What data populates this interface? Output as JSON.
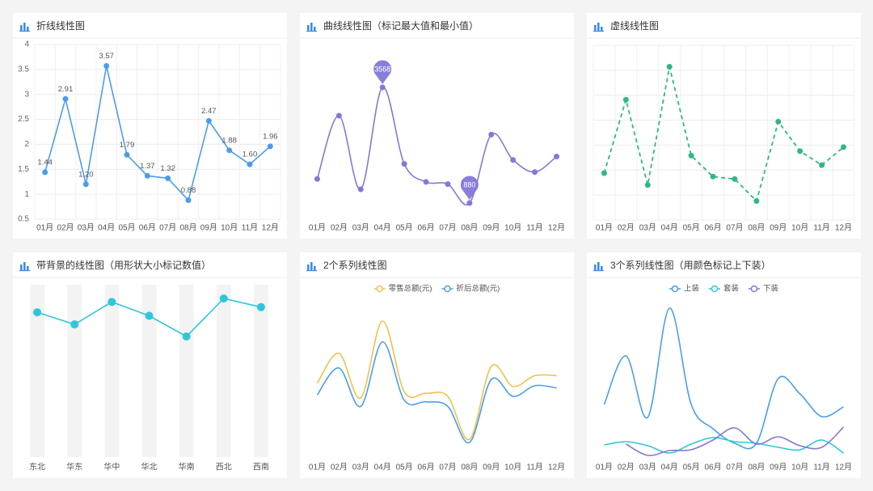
{
  "chart_data": [
    {
      "type": "line",
      "title": "折线线性图",
      "categories": [
        "01月",
        "02月",
        "03月",
        "04月",
        "05月",
        "06月",
        "07月",
        "08月",
        "09月",
        "10月",
        "11月",
        "12月"
      ],
      "series": [
        {
          "color": "#4a9ee8",
          "values": [
            1.44,
            2.91,
            1.2,
            3.57,
            1.79,
            1.37,
            1.32,
            0.88,
            2.47,
            1.88,
            1.6,
            1.96
          ],
          "value_labels": [
            "1.44",
            "2.91",
            "1.20",
            "3.57",
            "1.79",
            "1.37",
            "1.32",
            "0.88",
            "2.47",
            "1.88",
            "1.60",
            "1.96"
          ]
        }
      ],
      "ylim": [
        0.5,
        4
      ],
      "yticks": [
        0.5,
        1,
        1.5,
        2,
        2.5,
        3,
        3.5,
        4
      ],
      "grid": true,
      "markers": true
    },
    {
      "type": "line",
      "title": "曲线线性图（标记最大值和最小值）",
      "categories": [
        "01月",
        "02月",
        "03月",
        "04月",
        "05月",
        "06月",
        "07月",
        "08月",
        "09月",
        "10月",
        "11月",
        "12月"
      ],
      "series": [
        {
          "color": "#8378d8",
          "values": [
            1440,
            2910,
            1200,
            3568,
            1790,
            1370,
            1320,
            880,
            2470,
            1880,
            1600,
            1960
          ]
        }
      ],
      "smooth": true,
      "markers": true,
      "mark_extremes": true
    },
    {
      "type": "line",
      "title": "虚线线性图",
      "categories": [
        "01月",
        "02月",
        "03月",
        "04月",
        "05月",
        "06月",
        "07月",
        "08月",
        "09月",
        "10月",
        "11月",
        "12月"
      ],
      "series": [
        {
          "color": "#2fb884",
          "values": [
            1.44,
            2.91,
            1.2,
            3.57,
            1.79,
            1.37,
            1.32,
            0.88,
            2.47,
            1.88,
            1.6,
            1.96
          ]
        }
      ],
      "ylim": [
        0.5,
        4
      ],
      "yticks": [
        0.5,
        1,
        1.5,
        2,
        2.5,
        3,
        3.5,
        4
      ],
      "grid": true,
      "markers": true,
      "dashed": true
    },
    {
      "type": "line",
      "title": "带背景的线性图（用形状大小标记数值）",
      "categories": [
        "东北",
        "华东",
        "华中",
        "华北",
        "华南",
        "西北",
        "西南"
      ],
      "series": [
        {
          "color": "#2ec7d9",
          "values": [
            84,
            77,
            90,
            82,
            70,
            92,
            87
          ]
        }
      ],
      "markers": true,
      "background_bars": true
    },
    {
      "type": "line",
      "title": "2个系列线性图",
      "categories": [
        "01月",
        "02月",
        "03月",
        "04月",
        "05月",
        "06月",
        "07月",
        "08月",
        "09月",
        "10月",
        "11月",
        "12月"
      ],
      "series": [
        {
          "name": "零售总额(元)",
          "color": "#f0c050",
          "values": [
            960,
            1350,
            770,
            1770,
            850,
            830,
            790,
            230,
            1180,
            920,
            1060,
            1060
          ]
        },
        {
          "name": "折后总额(元)",
          "color": "#4a9ee8",
          "values": [
            810,
            1160,
            660,
            1500,
            740,
            720,
            660,
            190,
            1010,
            790,
            930,
            900
          ]
        }
      ],
      "smooth": true
    },
    {
      "type": "line",
      "title": "3个系列线性图（用颜色标记上下装）",
      "categories": [
        "01月",
        "02月",
        "03月",
        "04月",
        "05月",
        "06月",
        "07月",
        "08月",
        "09月",
        "10月",
        "11月",
        "12月"
      ],
      "series": [
        {
          "name": "上装",
          "color": "#4a9ee8",
          "values": [
            800,
            1400,
            640,
            1990,
            800,
            500,
            320,
            320,
            1120,
            930,
            650,
            770
          ]
        },
        {
          "name": "套装",
          "color": "#2ec7d9",
          "values": [
            300,
            340,
            290,
            200,
            310,
            390,
            340,
            320,
            270,
            240,
            360,
            200
          ]
        },
        {
          "name": "下装",
          "color": "#8378d8",
          "values": [
            null,
            310,
            170,
            230,
            240,
            360,
            510,
            310,
            400,
            290,
            270,
            520
          ]
        }
      ],
      "smooth": true
    }
  ]
}
